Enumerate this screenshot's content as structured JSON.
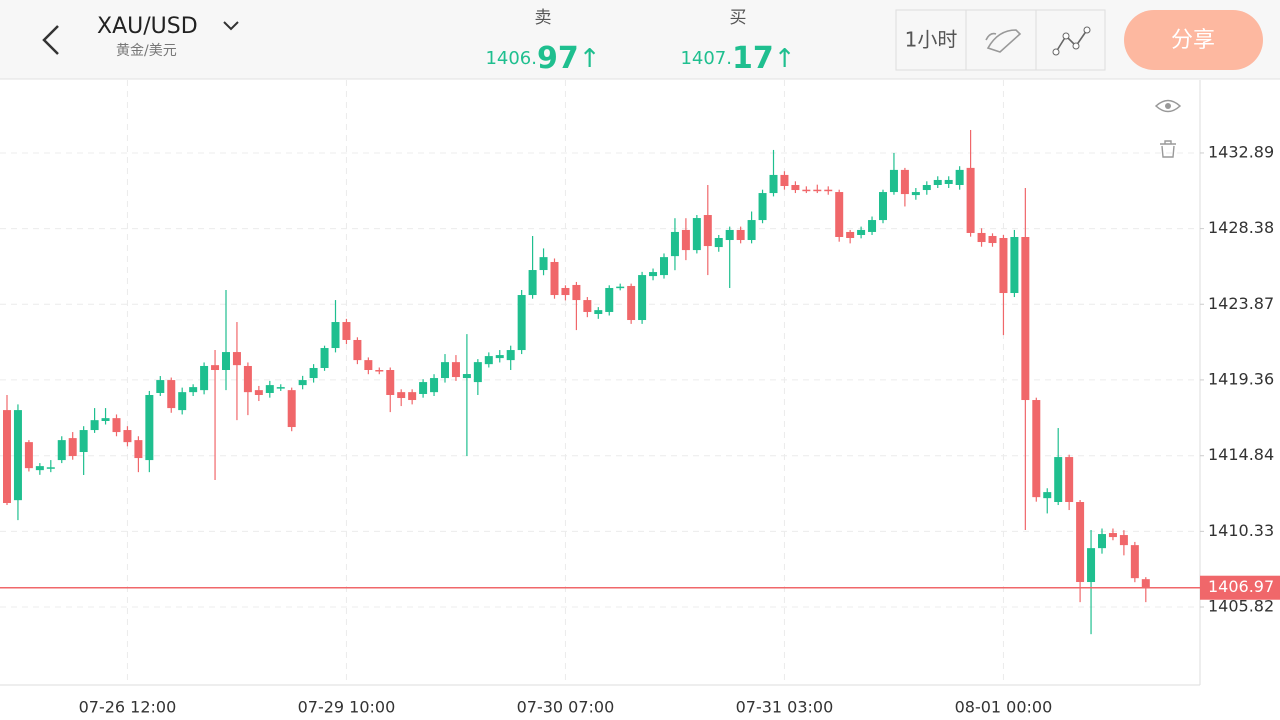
{
  "header": {
    "symbol": "XAU/USD",
    "subtitle": "黄金/美元",
    "sell": {
      "label": "卖",
      "price_int": "1406.",
      "price_dec": "97",
      "arrow": "↑"
    },
    "buy": {
      "label": "买",
      "price_int": "1407.",
      "price_dec": "17",
      "arrow": "↑"
    },
    "period": "1小时",
    "share": "分享"
  },
  "chart_data": {
    "type": "candlestick",
    "up_color": "#1fbf8f",
    "down_color": "#f0676a",
    "grid": true,
    "ylim": [
      1401.17,
      1437.24
    ],
    "yticks": [
      1405.82,
      1410.33,
      1414.84,
      1419.36,
      1423.87,
      1428.38,
      1432.89
    ],
    "last_price": 1406.97,
    "last_price_color": "#f0676a",
    "categories": [
      null,
      null,
      null,
      null,
      null,
      null,
      null,
      null,
      null,
      null,
      null,
      "07-26 12:00",
      null,
      null,
      null,
      null,
      null,
      null,
      null,
      null,
      null,
      null,
      null,
      null,
      null,
      null,
      null,
      null,
      null,
      null,
      null,
      "07-29 10:00",
      null,
      null,
      null,
      null,
      null,
      null,
      null,
      null,
      null,
      null,
      null,
      null,
      null,
      null,
      null,
      null,
      null,
      null,
      null,
      "07-30 07:00",
      null,
      null,
      null,
      null,
      null,
      null,
      null,
      null,
      null,
      null,
      null,
      null,
      null,
      null,
      null,
      null,
      null,
      null,
      null,
      "07-31 03:00",
      null,
      null,
      null,
      null,
      null,
      null,
      null,
      null,
      null,
      null,
      null,
      null,
      null,
      null,
      null,
      null,
      null,
      null,
      null,
      "08-01 00:00",
      null,
      null,
      null,
      null,
      null,
      null,
      null,
      null,
      null,
      null,
      null,
      null,
      null
    ],
    "open": [
      1417.56,
      1412.19,
      1415.65,
      1413.98,
      1414.1,
      1414.58,
      1415.89,
      1415.06,
      1416.37,
      1416.91,
      1417.08,
      1416.37,
      1415.77,
      1414.58,
      1418.58,
      1419.35,
      1417.56,
      1418.63,
      1418.75,
      1420.24,
      1419.95,
      1421.02,
      1420.19,
      1418.75,
      1418.58,
      1418.9,
      1418.75,
      1419.05,
      1419.47,
      1420.07,
      1421.26,
      1422.81,
      1421.74,
      1420.54,
      1419.95,
      1419.95,
      1418.63,
      1418.63,
      1418.52,
      1418.63,
      1419.47,
      1420.42,
      1419.47,
      1419.23,
      1420.3,
      1420.66,
      1420.54,
      1421.14,
      1424.42,
      1425.91,
      1426.39,
      1424.84,
      1425.02,
      1424.12,
      1423.29,
      1423.41,
      1424.9,
      1424.96,
      1422.93,
      1425.55,
      1425.61,
      1426.74,
      1428.3,
      1427.1,
      1429.19,
      1427.28,
      1427.7,
      1428.3,
      1427.7,
      1428.89,
      1430.5,
      1431.58,
      1430.98,
      1430.7,
      1430.7,
      1430.7,
      1430.56,
      1428.18,
      1428.0,
      1428.18,
      1428.89,
      1430.56,
      1431.88,
      1430.38,
      1430.68,
      1430.98,
      1431.04,
      1430.98,
      1432.0,
      1428.12,
      1427.94,
      1427.82,
      1424.54,
      1427.88,
      1418.16,
      1412.31,
      1412.08,
      1414.76,
      1412.08,
      1407.31,
      1409.33,
      1410.23,
      1410.11,
      1409.51,
      1407.48
    ],
    "high": [
      1418.46,
      1417.9,
      1415.77,
      1414.4,
      1414.58,
      1416.0,
      1416.25,
      1416.6,
      1417.68,
      1417.68,
      1417.3,
      1416.6,
      1416.0,
      1418.7,
      1419.59,
      1419.5,
      1418.9,
      1419.1,
      1420.4,
      1421.14,
      1424.72,
      1422.81,
      1420.4,
      1419.0,
      1419.3,
      1419.1,
      1418.9,
      1419.6,
      1420.3,
      1421.4,
      1424.12,
      1423.0,
      1421.9,
      1420.7,
      1420.1,
      1420.1,
      1418.8,
      1418.8,
      1419.4,
      1419.7,
      1420.9,
      1420.84,
      1422.09,
      1420.6,
      1421.0,
      1421.14,
      1421.4,
      1424.72,
      1427.94,
      1427.2,
      1426.6,
      1425.0,
      1425.2,
      1424.3,
      1423.7,
      1425.0,
      1425.1,
      1425.1,
      1425.8,
      1426.0,
      1426.9,
      1429.0,
      1429.0,
      1429.19,
      1430.98,
      1428.0,
      1428.5,
      1428.5,
      1429.4,
      1430.7,
      1433.07,
      1431.8,
      1431.2,
      1430.9,
      1431.0,
      1430.9,
      1430.7,
      1428.3,
      1428.5,
      1429.1,
      1430.7,
      1432.89,
      1432.0,
      1430.8,
      1431.2,
      1431.5,
      1431.5,
      1432.1,
      1434.26,
      1428.4,
      1428.1,
      1428.0,
      1428.3,
      1430.8,
      1418.3,
      1412.9,
      1416.49,
      1414.9,
      1412.2,
      1410.41,
      1410.5,
      1410.5,
      1410.4,
      1409.7,
      1407.6
    ],
    "low": [
      1411.9,
      1411.0,
      1413.9,
      1413.7,
      1413.86,
      1414.4,
      1414.6,
      1413.69,
      1416.2,
      1416.7,
      1416.0,
      1415.4,
      1413.86,
      1413.86,
      1418.4,
      1417.4,
      1417.3,
      1418.4,
      1418.5,
      1413.39,
      1418.75,
      1416.96,
      1417.26,
      1418.1,
      1418.3,
      1418.7,
      1416.3,
      1418.8,
      1419.2,
      1419.9,
      1421.0,
      1421.5,
      1420.3,
      1419.7,
      1419.7,
      1417.44,
      1417.8,
      1417.9,
      1418.3,
      1418.4,
      1419.2,
      1419.3,
      1414.82,
      1418.46,
      1420.1,
      1420.4,
      1419.95,
      1420.9,
      1424.2,
      1425.6,
      1424.2,
      1424.1,
      1422.33,
      1423.1,
      1423.0,
      1423.2,
      1424.7,
      1422.7,
      1422.7,
      1425.3,
      1425.4,
      1425.9,
      1426.5,
      1426.9,
      1425.61,
      1427.0,
      1424.84,
      1427.5,
      1427.5,
      1428.7,
      1430.3,
      1430.7,
      1430.5,
      1430.5,
      1430.5,
      1430.4,
      1427.6,
      1427.5,
      1427.8,
      1428.0,
      1428.7,
      1430.4,
      1429.7,
      1430.1,
      1430.4,
      1430.8,
      1430.8,
      1430.7,
      1427.9,
      1427.3,
      1427.3,
      1422.03,
      1424.3,
      1410.41,
      1412.1,
      1411.4,
      1411.9,
      1411.6,
      1406.11,
      1404.2,
      1409.0,
      1409.8,
      1408.9,
      1407.3,
      1406.11
    ],
    "close": [
      1412.02,
      1417.56,
      1414.1,
      1414.22,
      1414.15,
      1415.77,
      1414.82,
      1416.37,
      1416.96,
      1417.08,
      1416.25,
      1415.65,
      1414.7,
      1418.46,
      1419.35,
      1417.68,
      1418.63,
      1418.93,
      1420.19,
      1419.95,
      1421.02,
      1420.24,
      1418.63,
      1418.46,
      1419.05,
      1418.93,
      1416.55,
      1419.35,
      1420.07,
      1421.26,
      1422.81,
      1421.74,
      1420.54,
      1419.95,
      1419.9,
      1418.46,
      1418.28,
      1418.16,
      1419.23,
      1419.47,
      1420.42,
      1419.53,
      1419.71,
      1420.42,
      1420.78,
      1420.84,
      1421.14,
      1424.42,
      1425.91,
      1426.68,
      1424.42,
      1424.42,
      1424.12,
      1423.41,
      1423.52,
      1424.84,
      1424.92,
      1422.93,
      1425.61,
      1425.79,
      1426.68,
      1428.18,
      1427.1,
      1429.01,
      1427.34,
      1427.82,
      1428.3,
      1427.7,
      1428.89,
      1430.5,
      1431.58,
      1430.92,
      1430.68,
      1430.68,
      1430.68,
      1430.68,
      1427.88,
      1427.82,
      1428.3,
      1428.89,
      1430.56,
      1431.88,
      1430.44,
      1430.56,
      1430.98,
      1431.28,
      1431.28,
      1431.88,
      1428.12,
      1427.58,
      1427.52,
      1424.54,
      1427.88,
      1418.16,
      1412.37,
      1412.67,
      1414.76,
      1412.08,
      1407.31,
      1409.33,
      1410.17,
      1409.99,
      1409.51,
      1407.54,
      1406.97
    ]
  }
}
